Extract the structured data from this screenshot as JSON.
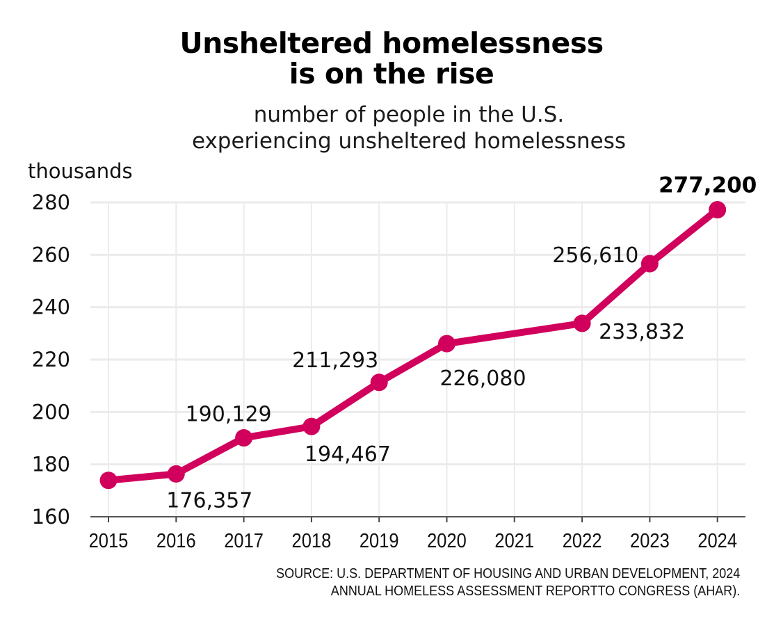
{
  "title_lines": [
    "Unsheltered homelessness",
    "is on the rise"
  ],
  "subtitle_lines": [
    "number of people in the U.S.",
    "experiencing unsheltered homelessness"
  ],
  "source_lines": [
    "SOURCE: U.S. DEPARTMENT OF HOUSING AND URBAN DEVELOPMENT, 2024",
    "ANNUAL HOMELESS ASSESSMENT REPORTTO CONGRESS (AHAR)."
  ],
  "colors": {
    "line": "#d1005c",
    "grid": "#ebebeb",
    "text": "#111111"
  },
  "chart_data": {
    "type": "line",
    "ylabel": "thousands",
    "ylim": [
      160,
      280
    ],
    "y_ticks": [
      "160",
      "180",
      "200",
      "220",
      "240",
      "260",
      "280"
    ],
    "categories": [
      "2015",
      "2016",
      "2017",
      "2018",
      "2019",
      "2020",
      "2021",
      "2022",
      "2023",
      "2024"
    ],
    "grid": true,
    "series": [
      {
        "values": [
          173.9,
          176.357,
          190.129,
          194.467,
          211.293,
          226.08,
          null,
          233.832,
          256.61,
          277.2
        ]
      }
    ],
    "data_labels": [
      {
        "x": "2016",
        "label": "176,357",
        "position": "below"
      },
      {
        "x": "2017",
        "label": "190,129",
        "position": "above"
      },
      {
        "x": "2018",
        "label": "194,467",
        "position": "below"
      },
      {
        "x": "2019",
        "label": "211,293",
        "position": "above"
      },
      {
        "x": "2020",
        "label": "226,080",
        "position": "below"
      },
      {
        "x": "2022",
        "label": "233,832",
        "position": "below"
      },
      {
        "x": "2023",
        "label": "256,610",
        "position": "above"
      },
      {
        "x": "2024",
        "label": "277,200",
        "position": "above",
        "bold": true
      }
    ]
  }
}
